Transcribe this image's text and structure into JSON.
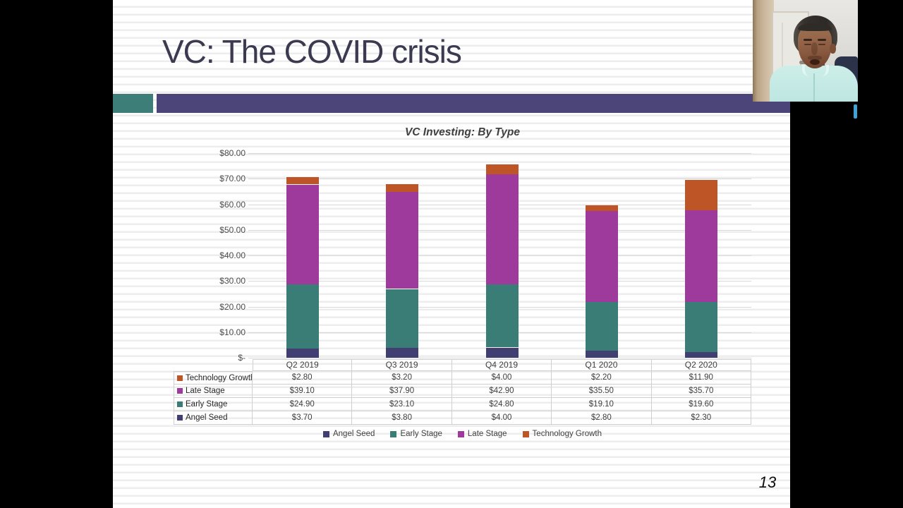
{
  "slide": {
    "title": "VC: The COVID crisis",
    "page_number": "13",
    "colors": {
      "accent_teal": "#3e7e79",
      "accent_purple": "#4c4579",
      "title_text": "#3b3a50"
    }
  },
  "chart_data": {
    "type": "bar",
    "subtype": "stacked",
    "title": "VC Investing: By Type",
    "categories": [
      "Q2 2019",
      "Q3 2019",
      "Q4 2019",
      "Q1 2020",
      "Q2 2020"
    ],
    "series": [
      {
        "name": "Angel Seed",
        "color": "#413f72",
        "values": [
          3.7,
          3.8,
          4.0,
          2.8,
          2.3
        ]
      },
      {
        "name": "Early Stage",
        "color": "#3a7d77",
        "values": [
          24.9,
          23.1,
          24.8,
          19.1,
          19.6
        ]
      },
      {
        "name": "Late Stage",
        "color": "#9e3a9b",
        "values": [
          39.1,
          37.9,
          42.9,
          35.5,
          35.7
        ]
      },
      {
        "name": "Technology Growth",
        "color": "#bd5526",
        "values": [
          2.8,
          3.2,
          4.0,
          2.2,
          11.9
        ]
      }
    ],
    "y_ticks": [
      "$80.00",
      "$70.00",
      "$60.00",
      "$50.00",
      "$40.00",
      "$30.00",
      "$20.00",
      "$10.00",
      "$-"
    ],
    "y_tick_values": [
      80,
      70,
      60,
      50,
      40,
      30,
      20,
      10,
      0
    ],
    "ylim": [
      0,
      80
    ],
    "grid": true,
    "legend_position": "bottom",
    "legend": [
      "Angel Seed",
      "Early Stage",
      "Late Stage",
      "Technology Growth"
    ],
    "table": {
      "rows": [
        {
          "label": "Technology Growth",
          "color": "#bd5526",
          "values": [
            "$2.80",
            "$3.20",
            "$4.00",
            "$2.20",
            "$11.90"
          ]
        },
        {
          "label": "Late Stage",
          "color": "#9e3a9b",
          "values": [
            "$39.10",
            "$37.90",
            "$42.90",
            "$35.50",
            "$35.70"
          ]
        },
        {
          "label": "Early Stage",
          "color": "#3a7d77",
          "values": [
            "$24.90",
            "$23.10",
            "$24.80",
            "$19.10",
            "$19.60"
          ]
        },
        {
          "label": "Angel Seed",
          "color": "#413f72",
          "values": [
            "$3.70",
            "$3.80",
            "$4.00",
            "$2.80",
            "$2.30"
          ]
        }
      ]
    }
  }
}
